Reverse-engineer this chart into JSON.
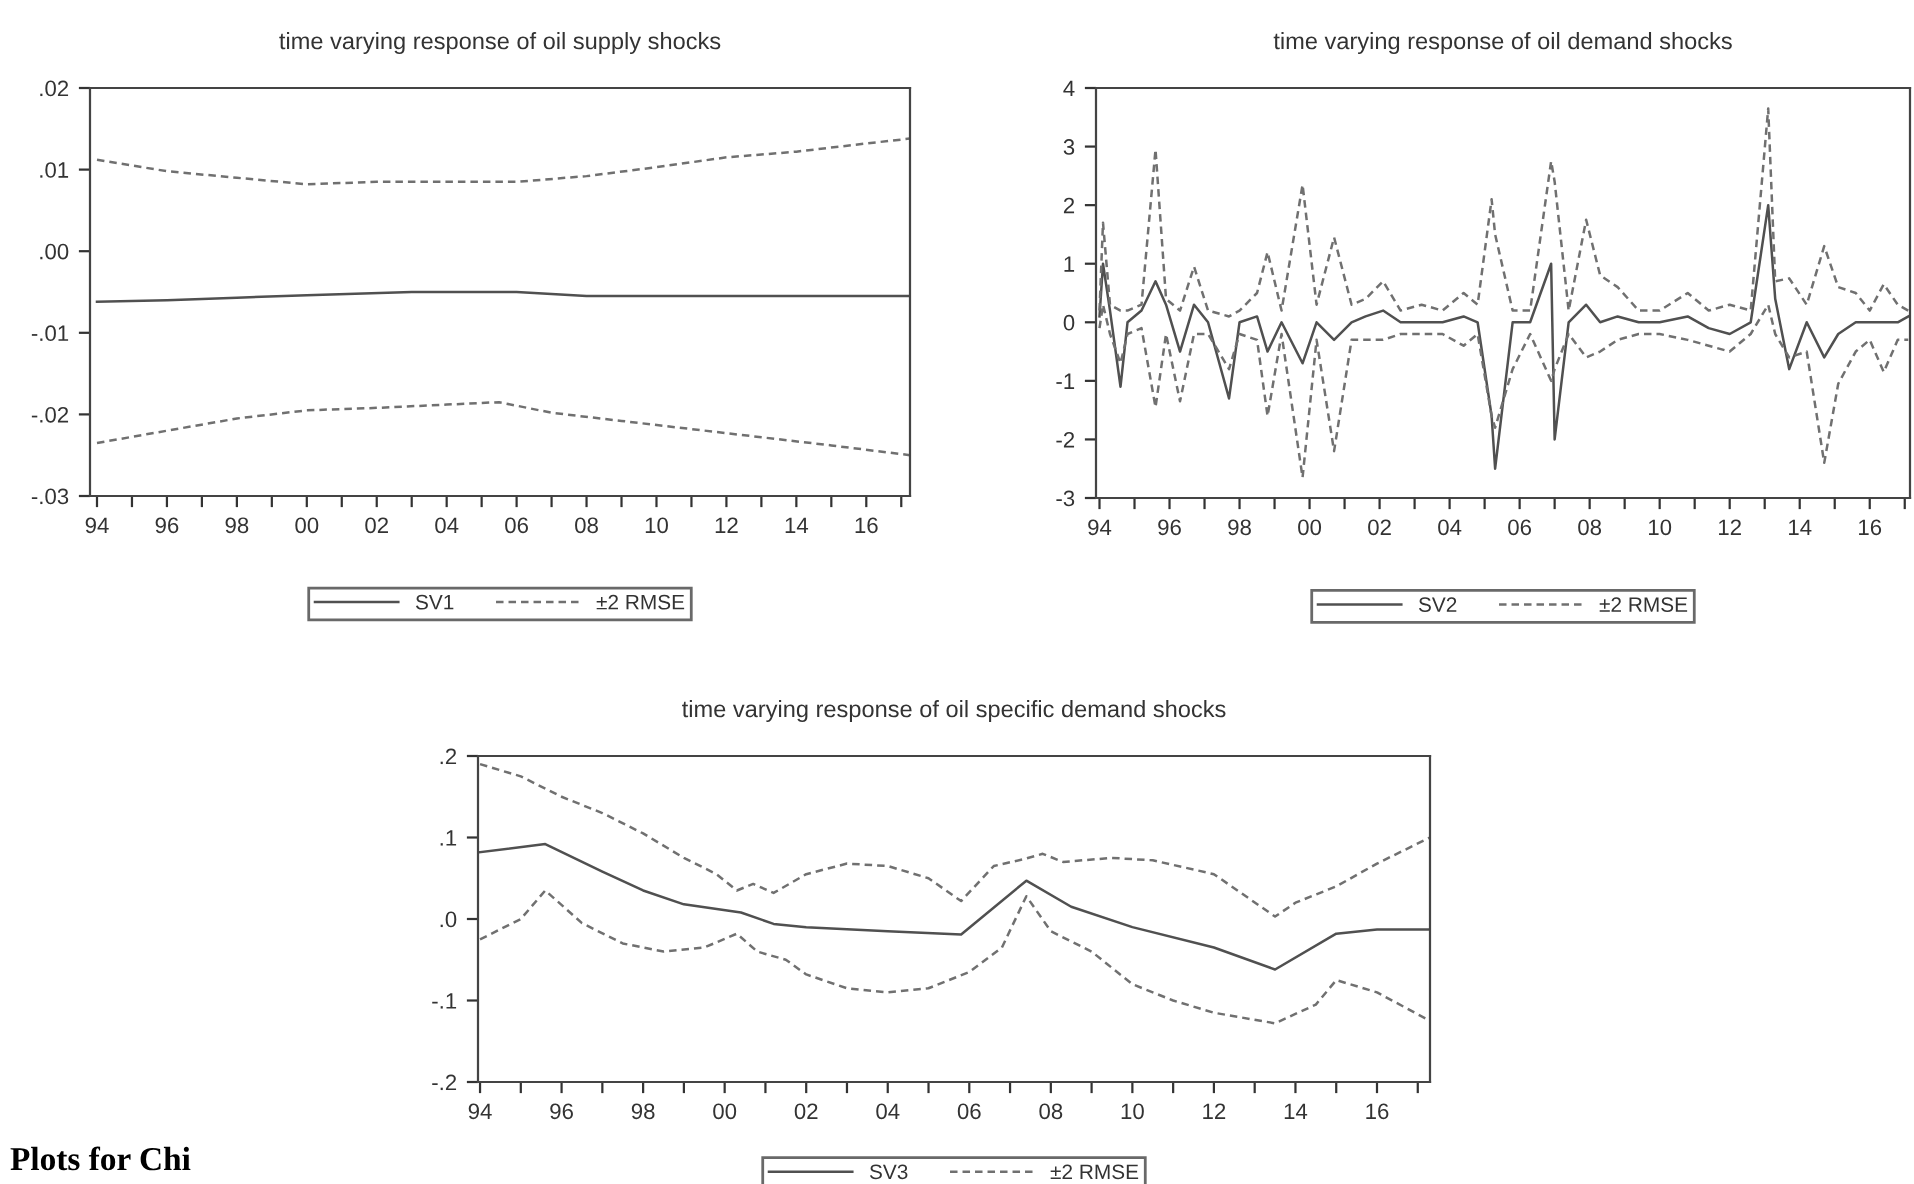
{
  "chart_data": [
    {
      "type": "line",
      "title": "time varying response of oil supply shocks",
      "xlim": [
        1993.8,
        2017.25
      ],
      "ylim": [
        -0.03,
        0.02
      ],
      "xticks": [
        {
          "value": 1994,
          "label": "94"
        },
        {
          "value": 1995,
          "label": null
        },
        {
          "value": 1996,
          "label": "96"
        },
        {
          "value": 1997,
          "label": null
        },
        {
          "value": 1998,
          "label": "98"
        },
        {
          "value": 1999,
          "label": null
        },
        {
          "value": 2000,
          "label": "00"
        },
        {
          "value": 2001,
          "label": null
        },
        {
          "value": 2002,
          "label": "02"
        },
        {
          "value": 2003,
          "label": null
        },
        {
          "value": 2004,
          "label": "04"
        },
        {
          "value": 2005,
          "label": null
        },
        {
          "value": 2006,
          "label": "06"
        },
        {
          "value": 2007,
          "label": null
        },
        {
          "value": 2008,
          "label": "08"
        },
        {
          "value": 2009,
          "label": null
        },
        {
          "value": 2010,
          "label": "10"
        },
        {
          "value": 2011,
          "label": null
        },
        {
          "value": 2012,
          "label": "12"
        },
        {
          "value": 2013,
          "label": null
        },
        {
          "value": 2014,
          "label": "14"
        },
        {
          "value": 2015,
          "label": null
        },
        {
          "value": 2016,
          "label": "16"
        },
        {
          "value": 2017,
          "label": null
        }
      ],
      "yticks": [
        {
          "value": 0.02,
          "label": ".02"
        },
        {
          "value": 0.01,
          "label": ".01"
        },
        {
          "value": 0,
          "label": ".00"
        },
        {
          "value": -0.01,
          "label": "-.01"
        },
        {
          "value": -0.02,
          "label": "-.02"
        },
        {
          "value": -0.03,
          "label": "-.03"
        }
      ],
      "grid": false,
      "legend": "bottom",
      "series": [
        {
          "name": "SV1",
          "color": "#505050",
          "line_style": "solid",
          "x": [
            1994,
            1996,
            1998,
            2000,
            2003,
            2006,
            2008,
            2012,
            2017.25
          ],
          "values": [
            -0.0062,
            -0.006,
            -0.0057,
            -0.0054,
            -0.005,
            -0.005,
            -0.0055,
            -0.0055,
            -0.0055
          ]
        },
        {
          "name": "±2 RMSE",
          "color": "#707070",
          "line_style": "dashed",
          "x": [
            1994,
            1996,
            1998,
            2000,
            2002,
            2004,
            2006,
            2008,
            2010,
            2012,
            2014,
            2016,
            2017.25
          ],
          "values": [
            0.0112,
            0.0098,
            0.009,
            0.0082,
            0.0085,
            0.0085,
            0.0085,
            0.0092,
            0.0103,
            0.0115,
            0.0122,
            0.0132,
            0.0138
          ]
        },
        {
          "color": "#707070",
          "line_style": "dashed",
          "x": [
            1994,
            1996,
            1998,
            2000,
            2002,
            2004,
            2005.5,
            2007,
            2009,
            2011,
            2013,
            2015,
            2017.25
          ],
          "values": [
            -0.0235,
            -0.022,
            -0.0205,
            -0.0195,
            -0.0192,
            -0.0188,
            -0.0185,
            -0.0198,
            -0.0208,
            -0.0218,
            -0.0228,
            -0.0238,
            -0.025
          ]
        }
      ]
    },
    {
      "type": "line",
      "title": "time varying response of oil demand shocks",
      "xlim": [
        1993.9,
        2017.15
      ],
      "ylim": [
        -3,
        4
      ],
      "xticks": [
        {
          "value": 1994,
          "label": "94"
        },
        {
          "value": 1995,
          "label": null
        },
        {
          "value": 1996,
          "label": "96"
        },
        {
          "value": 1997,
          "label": null
        },
        {
          "value": 1998,
          "label": "98"
        },
        {
          "value": 1999,
          "label": null
        },
        {
          "value": 2000,
          "label": "00"
        },
        {
          "value": 2001,
          "label": null
        },
        {
          "value": 2002,
          "label": "02"
        },
        {
          "value": 2003,
          "label": null
        },
        {
          "value": 2004,
          "label": "04"
        },
        {
          "value": 2005,
          "label": null
        },
        {
          "value": 2006,
          "label": "06"
        },
        {
          "value": 2007,
          "label": null
        },
        {
          "value": 2008,
          "label": "08"
        },
        {
          "value": 2009,
          "label": null
        },
        {
          "value": 2010,
          "label": "10"
        },
        {
          "value": 2011,
          "label": null
        },
        {
          "value": 2012,
          "label": "12"
        },
        {
          "value": 2013,
          "label": null
        },
        {
          "value": 2014,
          "label": "14"
        },
        {
          "value": 2015,
          "label": null
        },
        {
          "value": 2016,
          "label": "16"
        },
        {
          "value": 2017,
          "label": null
        }
      ],
      "yticks": [
        4,
        3,
        2,
        1,
        0,
        -1,
        -2,
        -3
      ],
      "grid": false,
      "legend": "bottom",
      "x": [
        1994.0,
        1994.1,
        1994.3,
        1994.6,
        1994.8,
        1995.2,
        1995.6,
        1995.9,
        1996.3,
        1996.7,
        1997.1,
        1997.7,
        1998.0,
        1998.5,
        1998.8,
        1999.2,
        1999.8,
        2000.2,
        2000.7,
        2001.2,
        2001.6,
        2002.1,
        2002.6,
        2003.2,
        2003.8,
        2004.4,
        2004.8,
        2005.2,
        2005.3,
        2005.8,
        2006.3,
        2006.9,
        2007.0,
        2007.4,
        2007.9,
        2008.3,
        2008.8,
        2009.4,
        2010.0,
        2010.8,
        2011.4,
        2012.0,
        2012.6,
        2013.1,
        2013.3,
        2013.7,
        2014.2,
        2014.7,
        2015.1,
        2015.6,
        2016.0,
        2016.4,
        2016.8,
        2017.1
      ],
      "series": [
        {
          "name": "SV2",
          "color": "#505050",
          "line_style": "solid",
          "values": [
            0.1,
            1.0,
            0.2,
            -1.1,
            0.0,
            0.2,
            0.7,
            0.3,
            -0.5,
            0.3,
            0.0,
            -1.3,
            0.0,
            0.1,
            -0.5,
            0.0,
            -0.7,
            0.0,
            -0.3,
            0.0,
            0.1,
            0.2,
            0.0,
            0.0,
            0.0,
            0.1,
            0.0,
            -1.6,
            -2.5,
            0.0,
            0.0,
            1.0,
            -2.0,
            0.0,
            0.3,
            0.0,
            0.1,
            0.0,
            0.0,
            0.1,
            -0.1,
            -0.2,
            0.0,
            2.0,
            0.4,
            -0.8,
            0.0,
            -0.6,
            -0.2,
            0.0,
            0.0,
            0.0,
            0.0,
            0.1
          ]
        },
        {
          "name": "±2 RMSE",
          "color": "#707070",
          "line_style": "dashed",
          "values": [
            0.2,
            1.7,
            0.3,
            0.2,
            0.2,
            0.3,
            2.95,
            0.4,
            0.2,
            0.95,
            0.2,
            0.1,
            0.2,
            0.5,
            1.2,
            0.2,
            2.35,
            0.3,
            1.45,
            0.3,
            0.4,
            0.7,
            0.2,
            0.3,
            0.2,
            0.5,
            0.3,
            2.1,
            1.5,
            0.2,
            0.2,
            2.75,
            2.4,
            0.2,
            1.75,
            0.8,
            0.6,
            0.2,
            0.2,
            0.5,
            0.2,
            0.3,
            0.2,
            3.65,
            0.7,
            0.75,
            0.3,
            1.3,
            0.6,
            0.5,
            0.2,
            0.65,
            0.3,
            0.2
          ]
        },
        {
          "color": "#707070",
          "line_style": "dashed",
          "values": [
            -0.1,
            0.3,
            -0.2,
            -0.7,
            -0.2,
            -0.1,
            -1.45,
            -0.2,
            -1.35,
            -0.2,
            -0.2,
            -0.8,
            -0.2,
            -0.3,
            -1.6,
            -0.2,
            -2.65,
            -0.3,
            -2.2,
            -0.3,
            -0.3,
            -0.3,
            -0.2,
            -0.2,
            -0.2,
            -0.4,
            -0.2,
            -1.6,
            -1.8,
            -0.8,
            -0.2,
            -1.0,
            -0.8,
            -0.2,
            -0.6,
            -0.5,
            -0.3,
            -0.2,
            -0.2,
            -0.3,
            -0.4,
            -0.5,
            -0.2,
            0.3,
            -0.2,
            -0.6,
            -0.5,
            -2.4,
            -1.05,
            -0.5,
            -0.3,
            -0.85,
            -0.3,
            -0.3
          ]
        }
      ]
    },
    {
      "type": "line",
      "title": "time varying response of oil specific demand shocks",
      "xlim": [
        1993.95,
        2017.3
      ],
      "ylim": [
        -0.2,
        0.2
      ],
      "xticks": [
        {
          "value": 1994,
          "label": "94"
        },
        {
          "value": 1995,
          "label": null
        },
        {
          "value": 1996,
          "label": "96"
        },
        {
          "value": 1997,
          "label": null
        },
        {
          "value": 1998,
          "label": "98"
        },
        {
          "value": 1999,
          "label": null
        },
        {
          "value": 2000,
          "label": "00"
        },
        {
          "value": 2001,
          "label": null
        },
        {
          "value": 2002,
          "label": "02"
        },
        {
          "value": 2003,
          "label": null
        },
        {
          "value": 2004,
          "label": "04"
        },
        {
          "value": 2005,
          "label": null
        },
        {
          "value": 2006,
          "label": "06"
        },
        {
          "value": 2007,
          "label": null
        },
        {
          "value": 2008,
          "label": "08"
        },
        {
          "value": 2009,
          "label": null
        },
        {
          "value": 2010,
          "label": "10"
        },
        {
          "value": 2011,
          "label": null
        },
        {
          "value": 2012,
          "label": "12"
        },
        {
          "value": 2013,
          "label": null
        },
        {
          "value": 2014,
          "label": "14"
        },
        {
          "value": 2015,
          "label": null
        },
        {
          "value": 2016,
          "label": "16"
        },
        {
          "value": 2017,
          "label": null
        }
      ],
      "yticks": [
        {
          "value": 0.2,
          "label": ".2"
        },
        {
          "value": 0.1,
          "label": ".1"
        },
        {
          "value": 0,
          "label": ".0"
        },
        {
          "value": -0.1,
          "label": "-.1"
        },
        {
          "value": -0.2,
          "label": "-.2"
        }
      ],
      "grid": false,
      "legend": "bottom",
      "annotations": [
        "Plots for Chi"
      ],
      "series": [
        {
          "name": "SV3",
          "color": "#505050",
          "line_style": "solid",
          "x": [
            1994,
            1995.6,
            1997,
            1998,
            1999,
            2000.4,
            2001.2,
            2002,
            2004,
            2005.8,
            2007.4,
            2008.5,
            2010,
            2012,
            2013.5,
            2015,
            2016,
            2017.3
          ],
          "values": [
            0.082,
            0.092,
            0.058,
            0.035,
            0.018,
            0.008,
            -0.006,
            -0.01,
            -0.015,
            -0.019,
            0.047,
            0.015,
            -0.01,
            -0.035,
            -0.062,
            -0.018,
            -0.013,
            -0.013
          ]
        },
        {
          "name": "±2 RMSE",
          "color": "#707070",
          "line_style": "dashed",
          "x": [
            1994,
            1995,
            1996,
            1997,
            1998,
            1999,
            1999.8,
            2000.3,
            2000.7,
            2001.2,
            2002,
            2003,
            2004,
            2005,
            2005.8,
            2006.6,
            2007.3,
            2007.8,
            2008.3,
            2009.5,
            2010.5,
            2012,
            2013.5,
            2014,
            2015,
            2016,
            2017.3
          ],
          "values": [
            0.19,
            0.175,
            0.15,
            0.13,
            0.105,
            0.075,
            0.055,
            0.035,
            0.043,
            0.032,
            0.055,
            0.068,
            0.065,
            0.05,
            0.022,
            0.065,
            0.073,
            0.08,
            0.07,
            0.075,
            0.072,
            0.055,
            0.003,
            0.02,
            0.04,
            0.068,
            0.1
          ]
        },
        {
          "color": "#707070",
          "line_style": "dashed",
          "x": [
            1994,
            1995,
            1995.6,
            1996.5,
            1997.5,
            1998.5,
            1999.5,
            2000.3,
            2000.8,
            2001.5,
            2002,
            2003,
            2004,
            2005,
            2006,
            2006.8,
            2007.4,
            2008,
            2009,
            2010,
            2011,
            2012,
            2013.5,
            2014.5,
            2015,
            2016,
            2017.3
          ],
          "values": [
            -0.025,
            0.0,
            0.035,
            -0.005,
            -0.03,
            -0.04,
            -0.035,
            -0.018,
            -0.04,
            -0.05,
            -0.068,
            -0.085,
            -0.09,
            -0.085,
            -0.065,
            -0.035,
            0.028,
            -0.015,
            -0.04,
            -0.08,
            -0.1,
            -0.115,
            -0.128,
            -0.105,
            -0.075,
            -0.09,
            -0.125
          ]
        }
      ]
    }
  ]
}
